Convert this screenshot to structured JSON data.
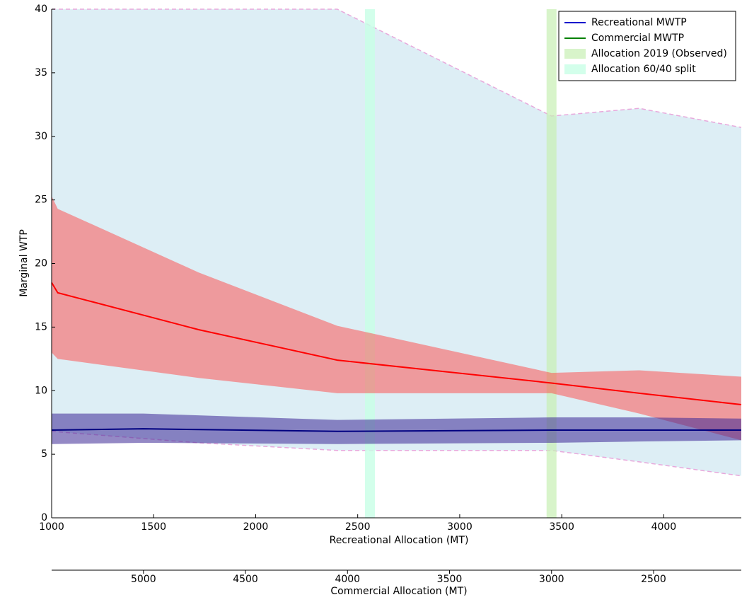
{
  "chart_data": {
    "type": "line",
    "ylabel": "Marginal WTP",
    "xlabel": "Recreational Allocation (MT)",
    "x2label": "Commercial Allocation (MT)",
    "xlim": [
      1000,
      4380
    ],
    "ylim": [
      0,
      40
    ],
    "xticks": [
      1000,
      1500,
      2000,
      2500,
      3000,
      3500,
      4000
    ],
    "yticks": [
      0,
      5,
      10,
      15,
      20,
      25,
      30,
      35,
      40
    ],
    "x2lim": [
      5450,
      2070
    ],
    "x2ticks": [
      5000,
      4500,
      4000,
      3500,
      3000,
      2500
    ],
    "bounds": {
      "color": "#ddeef5",
      "line_color": "#e8a8dc",
      "x": [
        1000,
        1720,
        2400,
        3450,
        3880,
        4380
      ],
      "upper": [
        40,
        40,
        40,
        31.6,
        32.2,
        30.7
      ],
      "lower": [
        6.8,
        5.9,
        5.3,
        5.3,
        4.4,
        3.3
      ]
    },
    "series": [
      {
        "color": "#ff0000",
        "band_color": "rgba(255,70,70,0.5)",
        "x": [
          1000,
          1030,
          1720,
          2400,
          3450,
          3880,
          4380
        ],
        "values": [
          18.5,
          17.7,
          14.8,
          12.4,
          10.6,
          9.8,
          8.9
        ],
        "upper": [
          25.3,
          24.3,
          19.3,
          15.1,
          11.4,
          11.6,
          11.1
        ],
        "lower": [
          13.0,
          12.5,
          11.0,
          9.8,
          9.8,
          8.2,
          6.1
        ]
      },
      {
        "color": "#000080",
        "band_color": "rgba(60,40,150,0.55)",
        "x": [
          1000,
          1450,
          2400,
          3450,
          3880,
          4380
        ],
        "values": [
          6.9,
          7.0,
          6.8,
          6.9,
          6.9,
          6.9
        ],
        "upper": [
          8.2,
          8.2,
          7.7,
          7.9,
          7.9,
          7.8
        ],
        "lower": [
          5.8,
          5.9,
          5.8,
          5.9,
          6.0,
          6.1
        ]
      }
    ],
    "legend": [
      {
        "name": "Recreational MWTP",
        "color": "#0000cc"
      },
      {
        "name": "Commercial MWTP",
        "color": "#008000"
      }
    ],
    "vspans": [
      {
        "name": "Allocation 2019 (Observed)",
        "x": 3450,
        "color": "rgba(200,240,180,0.7)"
      },
      {
        "name": "Allocation 60/40 split",
        "x": 2560,
        "color": "rgba(200,255,230,0.8)"
      }
    ]
  }
}
